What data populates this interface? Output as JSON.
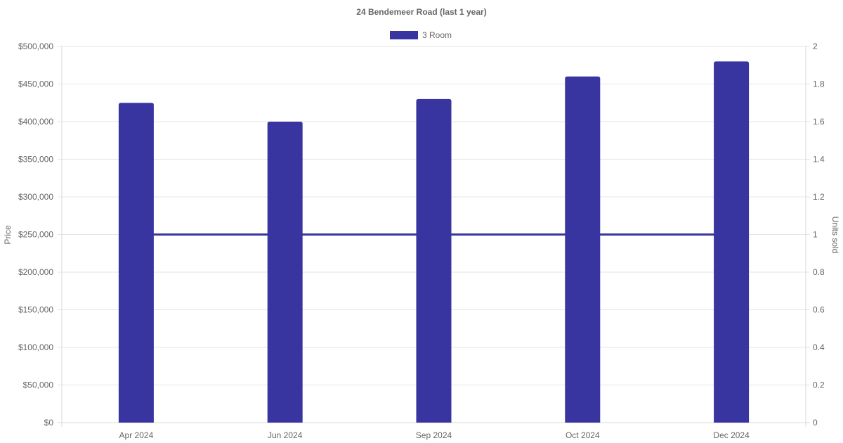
{
  "chart_data": {
    "type": "bar",
    "title": "24 Bendemeer Road (last 1 year)",
    "categories": [
      "Apr 2024",
      "Jun 2024",
      "Sep 2024",
      "Oct 2024",
      "Dec 2024"
    ],
    "series": [
      {
        "name": "3 Room",
        "type": "bar",
        "axis": "left",
        "values": [
          425000,
          400000,
          430000,
          460000,
          480000
        ]
      },
      {
        "type": "line",
        "axis": "right",
        "values": [
          1,
          1,
          1,
          1,
          1
        ]
      }
    ],
    "ylabel": "Price",
    "ylabel_right": "Units sold",
    "ylim": [
      0,
      500000
    ],
    "ylim_right": [
      0,
      2
    ],
    "yticks": [
      "$0",
      "$50,000",
      "$100,000",
      "$150,000",
      "$200,000",
      "$250,000",
      "$300,000",
      "$350,000",
      "$400,000",
      "$450,000",
      "$500,000"
    ],
    "yticks_right": [
      "0",
      "0.2",
      "0.4",
      "0.6",
      "0.8",
      "1",
      "1.2",
      "1.4",
      "1.6",
      "1.8",
      "2"
    ],
    "grid": true,
    "legend_position": "top-center",
    "colors": {
      "bar": "#3935a0",
      "line": "#3935a0"
    }
  }
}
